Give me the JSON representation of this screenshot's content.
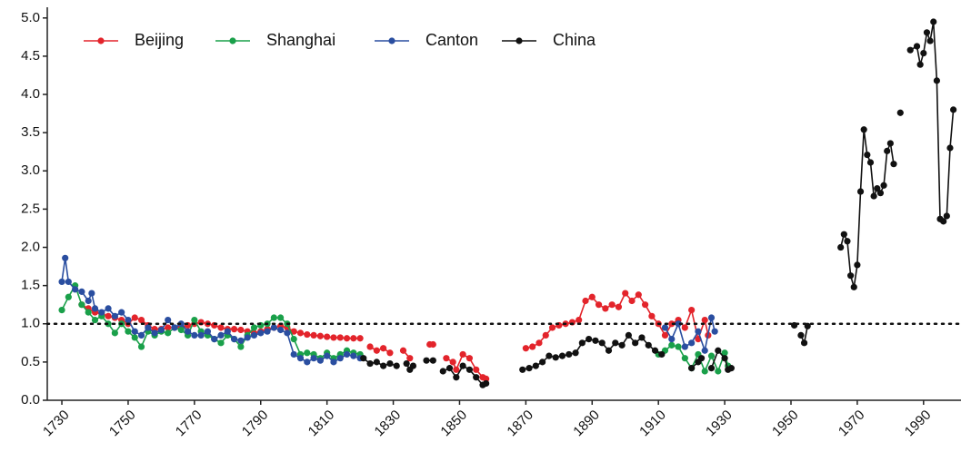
{
  "chart_data": {
    "type": "line",
    "xlim": [
      1725.6,
      2001.3
    ],
    "xticks": [
      1730,
      1750,
      1770,
      1790,
      1810,
      1830,
      1850,
      1870,
      1890,
      1910,
      1930,
      1950,
      1970,
      1990
    ],
    "ylim": [
      0,
      5.14
    ],
    "yticks": [
      {
        "value": 0,
        "label": "0.0"
      },
      0.5,
      {
        "value": 1,
        "label": "1.0"
      },
      1.5,
      {
        "value": 2,
        "label": "2.0"
      },
      2.5,
      {
        "value": 3,
        "label": "3.0"
      },
      3.5,
      {
        "value": 4,
        "label": "4.0"
      },
      4.5,
      {
        "value": 5,
        "label": "5.0"
      }
    ],
    "hline": 1,
    "legend": "top-left",
    "series": [
      {
        "name": "Beijing",
        "color": "#e3242b",
        "x": [
          1736,
          1738,
          1740,
          1742,
          1744,
          1746,
          1748,
          1750,
          1752,
          1754,
          1756,
          1758,
          1760,
          1762,
          1764,
          1766,
          1768,
          1770,
          1772,
          1774,
          1776,
          1778,
          1780,
          1782,
          1784,
          1786,
          1788,
          1790,
          1792,
          1794,
          1796,
          1798,
          1800,
          1802,
          1804,
          1806,
          1808,
          1810,
          1812,
          1814,
          1816,
          1818,
          1820,
          1821,
          1823,
          1825,
          1827,
          1829,
          1831,
          1833,
          1835,
          1838,
          1841,
          1842,
          1844,
          1846,
          1848,
          1849,
          1851,
          1853,
          1855,
          1857,
          1858,
          1864,
          1870,
          1872,
          1874,
          1876,
          1878,
          1880,
          1882,
          1884,
          1886,
          1888,
          1890,
          1892,
          1894,
          1896,
          1898,
          1900,
          1902,
          1904,
          1906,
          1908,
          1910,
          1912,
          1914,
          1916,
          1918,
          1920,
          1922,
          1924,
          1925
        ],
        "values": [
          1.25,
          1.2,
          1.15,
          1.13,
          1.1,
          1.08,
          1.05,
          1.0,
          1.08,
          1.05,
          0.98,
          0.93,
          0.93,
          0.95,
          0.95,
          0.96,
          0.98,
          1.0,
          1.02,
          1.0,
          0.98,
          0.95,
          0.93,
          0.93,
          0.92,
          0.9,
          0.88,
          0.9,
          0.93,
          0.95,
          0.97,
          0.95,
          0.9,
          0.88,
          0.86,
          0.85,
          0.84,
          0.83,
          0.82,
          0.82,
          0.81,
          0.81,
          0.81,
          null,
          0.7,
          0.65,
          0.68,
          0.62,
          null,
          0.65,
          0.55,
          null,
          0.73,
          0.73,
          null,
          0.55,
          0.5,
          0.4,
          0.6,
          0.55,
          0.4,
          0.3,
          0.28,
          null,
          0.68,
          0.7,
          0.75,
          0.85,
          0.95,
          0.98,
          1.0,
          1.02,
          1.05,
          1.3,
          1.35,
          1.25,
          1.2,
          1.25,
          1.22,
          1.4,
          1.3,
          1.38,
          1.25,
          1.1,
          1.0,
          0.85,
          1.0,
          1.05,
          0.95,
          1.18,
          0.8,
          1.05,
          0.85
        ]
      },
      {
        "name": "Shanghai",
        "color": "#1aa04a",
        "x": [
          1730,
          1732,
          1734,
          1736,
          1738,
          1740,
          1742,
          1744,
          1746,
          1748,
          1750,
          1752,
          1754,
          1756,
          1758,
          1760,
          1762,
          1764,
          1766,
          1768,
          1770,
          1772,
          1774,
          1776,
          1778,
          1780,
          1782,
          1784,
          1786,
          1788,
          1790,
          1792,
          1794,
          1796,
          1798,
          1800,
          1802,
          1804,
          1806,
          1808,
          1810,
          1812,
          1814,
          1816,
          1818,
          1820,
          1865,
          1910,
          1912,
          1914,
          1916,
          1918,
          1920,
          1922,
          1924,
          1926,
          1928,
          1930,
          1931
        ],
        "values": [
          1.18,
          1.35,
          1.5,
          1.25,
          1.15,
          1.05,
          1.1,
          1.0,
          0.88,
          1.0,
          0.9,
          0.82,
          0.7,
          0.9,
          0.85,
          0.9,
          0.88,
          0.95,
          0.92,
          0.85,
          1.05,
          0.9,
          0.85,
          0.8,
          0.75,
          0.85,
          0.8,
          0.7,
          0.85,
          0.95,
          0.98,
          1.0,
          1.08,
          1.08,
          1.0,
          0.8,
          0.6,
          0.62,
          0.6,
          0.55,
          0.62,
          0.55,
          0.6,
          0.65,
          0.62,
          0.6,
          null,
          0.6,
          0.65,
          0.72,
          0.7,
          0.55,
          0.42,
          0.6,
          0.38,
          0.58,
          0.38,
          0.62,
          0.45
        ]
      },
      {
        "name": "Canton",
        "color": "#2a4ea0",
        "x": [
          1730,
          1731,
          1732,
          1734,
          1736,
          1738,
          1739,
          1740,
          1742,
          1744,
          1746,
          1748,
          1750,
          1752,
          1754,
          1756,
          1758,
          1760,
          1762,
          1764,
          1766,
          1768,
          1770,
          1772,
          1774,
          1776,
          1778,
          1780,
          1782,
          1784,
          1786,
          1788,
          1790,
          1792,
          1794,
          1796,
          1798,
          1800,
          1802,
          1804,
          1806,
          1808,
          1810,
          1812,
          1814,
          1816,
          1818,
          1820,
          1865,
          1912,
          1914,
          1916,
          1918,
          1920,
          1922,
          1924,
          1926,
          1927
        ],
        "values": [
          1.55,
          1.86,
          1.55,
          1.45,
          1.42,
          1.3,
          1.4,
          1.2,
          1.15,
          1.2,
          1.1,
          1.15,
          1.05,
          0.9,
          0.85,
          0.95,
          0.88,
          0.92,
          1.05,
          0.95,
          1.0,
          0.9,
          0.85,
          0.85,
          0.9,
          0.8,
          0.85,
          0.9,
          0.8,
          0.78,
          0.82,
          0.85,
          0.88,
          0.9,
          0.95,
          0.92,
          0.88,
          0.6,
          0.55,
          0.5,
          0.55,
          0.52,
          0.58,
          0.5,
          0.55,
          0.6,
          0.58,
          0.55,
          null,
          0.95,
          0.8,
          1.0,
          0.7,
          0.75,
          0.9,
          0.65,
          1.08,
          0.9
        ]
      },
      {
        "name": "China",
        "color": "#111111",
        "x": [
          1821,
          1823,
          1825,
          1827,
          1829,
          1831,
          1833,
          1834,
          1835,
          1836,
          1838,
          1840,
          1842,
          1844,
          1845,
          1847,
          1849,
          1851,
          1853,
          1855,
          1857,
          1858,
          1864,
          1869,
          1871,
          1873,
          1875,
          1877,
          1879,
          1881,
          1883,
          1885,
          1887,
          1889,
          1891,
          1893,
          1895,
          1897,
          1899,
          1901,
          1903,
          1905,
          1907,
          1909,
          1911,
          1915,
          1920,
          1922,
          1923,
          1925,
          1926,
          1928,
          1930,
          1931,
          1932,
          1940,
          1951,
          1952,
          1953,
          1954,
          1955,
          1960,
          1965,
          1966,
          1967,
          1968,
          1969,
          1970,
          1971,
          1972,
          1973,
          1974,
          1975,
          1976,
          1977,
          1978,
          1979,
          1980,
          1981,
          1982,
          1983,
          1985,
          1986,
          1988,
          1989,
          1990,
          1991,
          1992,
          1993,
          1994,
          1995,
          1996,
          1997,
          1998,
          1999
        ],
        "values": [
          0.55,
          0.48,
          0.5,
          0.45,
          0.48,
          0.45,
          null,
          0.48,
          0.4,
          0.45,
          null,
          0.52,
          0.52,
          null,
          0.38,
          0.42,
          0.3,
          0.45,
          0.4,
          0.3,
          0.2,
          0.22,
          null,
          0.4,
          0.42,
          0.45,
          0.5,
          0.58,
          0.56,
          0.58,
          0.6,
          0.62,
          0.75,
          0.8,
          0.78,
          0.75,
          0.65,
          0.75,
          0.72,
          0.85,
          0.75,
          0.82,
          0.72,
          0.65,
          0.6,
          null,
          0.42,
          0.5,
          0.55,
          null,
          0.42,
          0.65,
          0.55,
          0.4,
          0.42,
          null,
          0.98,
          null,
          0.85,
          0.75,
          0.97,
          null,
          2.0,
          2.17,
          2.08,
          1.63,
          1.48,
          1.77,
          2.73,
          3.54,
          3.21,
          3.11,
          2.67,
          2.77,
          2.71,
          2.81,
          3.26,
          3.36,
          3.09,
          null,
          3.76,
          null,
          4.58,
          4.63,
          4.39,
          4.54,
          4.81,
          4.7,
          4.95,
          4.18,
          2.37,
          2.34,
          2.41,
          3.3,
          3.8
        ]
      }
    ]
  }
}
